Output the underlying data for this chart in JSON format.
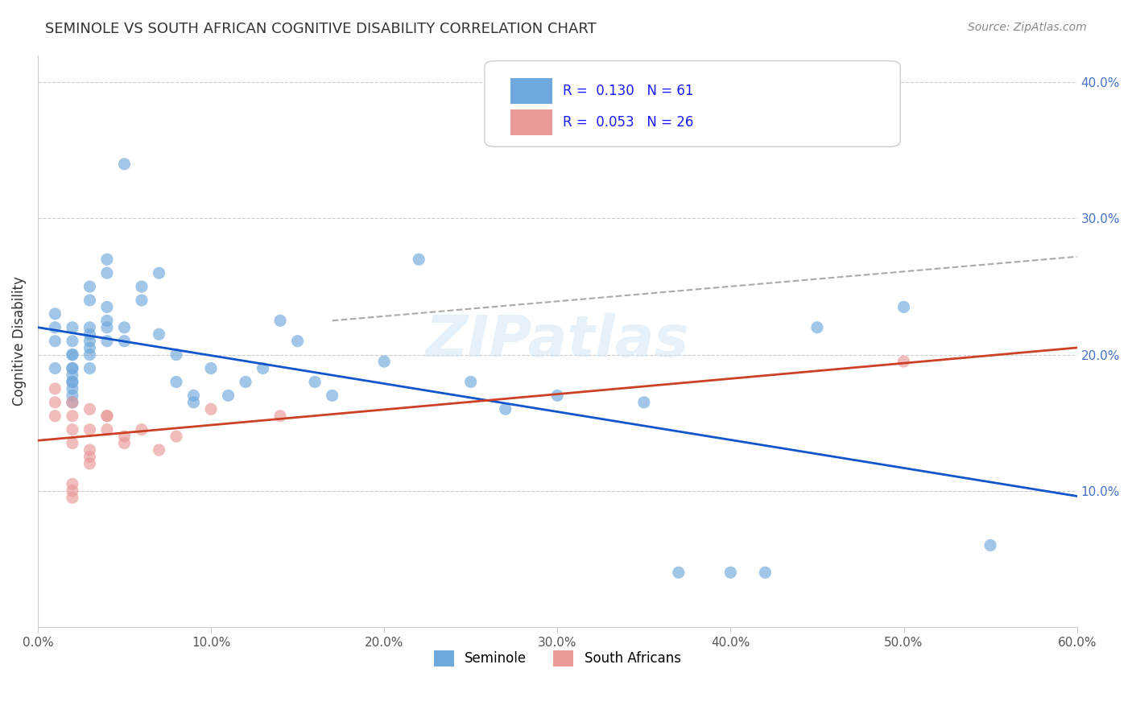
{
  "title": "SEMINOLE VS SOUTH AFRICAN COGNITIVE DISABILITY CORRELATION CHART",
  "source": "Source: ZipAtlas.com",
  "xlabel": "",
  "ylabel": "Cognitive Disability",
  "xlim": [
    0.0,
    0.6
  ],
  "ylim": [
    0.0,
    0.42
  ],
  "xticks": [
    0.0,
    0.1,
    0.2,
    0.3,
    0.4,
    0.5,
    0.6
  ],
  "xticklabels": [
    "0.0%",
    "10.0%",
    "20.0%",
    "30.0%",
    "40.0%",
    "50.0%",
    "60.0%"
  ],
  "yticks_right": [
    0.1,
    0.2,
    0.3,
    0.4
  ],
  "ytick_right_labels": [
    "10.0%",
    "20.0%",
    "30.0%",
    "40.0%"
  ],
  "seminole_R": 0.13,
  "seminole_N": 61,
  "southafrican_R": 0.053,
  "southafrican_N": 26,
  "seminole_color": "#6fa8dc",
  "southafrican_color": "#ea9999",
  "seminole_line_color": "#1155cc",
  "southafrican_line_color": "#cc4125",
  "dashed_line_color": "#aaaaaa",
  "watermark": "ZIPatlas",
  "background_color": "#ffffff",
  "grid_color": "#cccccc",
  "seminole_x": [
    0.01,
    0.01,
    0.01,
    0.01,
    0.02,
    0.02,
    0.02,
    0.02,
    0.02,
    0.02,
    0.02,
    0.02,
    0.02,
    0.02,
    0.02,
    0.02,
    0.03,
    0.03,
    0.03,
    0.03,
    0.03,
    0.03,
    0.03,
    0.03,
    0.04,
    0.04,
    0.04,
    0.04,
    0.04,
    0.04,
    0.05,
    0.05,
    0.05,
    0.06,
    0.06,
    0.07,
    0.07,
    0.08,
    0.08,
    0.09,
    0.09,
    0.1,
    0.11,
    0.12,
    0.13,
    0.14,
    0.15,
    0.16,
    0.17,
    0.2,
    0.22,
    0.25,
    0.27,
    0.3,
    0.35,
    0.37,
    0.4,
    0.42,
    0.45,
    0.5,
    0.55
  ],
  "seminole_y": [
    0.19,
    0.21,
    0.22,
    0.23,
    0.18,
    0.19,
    0.2,
    0.21,
    0.22,
    0.18,
    0.19,
    0.2,
    0.175,
    0.185,
    0.17,
    0.165,
    0.24,
    0.25,
    0.22,
    0.21,
    0.2,
    0.19,
    0.215,
    0.205,
    0.26,
    0.27,
    0.225,
    0.235,
    0.22,
    0.21,
    0.21,
    0.22,
    0.34,
    0.24,
    0.25,
    0.215,
    0.26,
    0.2,
    0.18,
    0.165,
    0.17,
    0.19,
    0.17,
    0.18,
    0.19,
    0.225,
    0.21,
    0.18,
    0.17,
    0.195,
    0.27,
    0.18,
    0.16,
    0.17,
    0.165,
    0.04,
    0.04,
    0.04,
    0.22,
    0.235,
    0.06
  ],
  "southafrican_x": [
    0.01,
    0.01,
    0.01,
    0.02,
    0.02,
    0.02,
    0.02,
    0.02,
    0.02,
    0.02,
    0.03,
    0.03,
    0.03,
    0.03,
    0.03,
    0.04,
    0.04,
    0.04,
    0.05,
    0.05,
    0.06,
    0.07,
    0.08,
    0.1,
    0.14,
    0.5
  ],
  "southafrican_y": [
    0.155,
    0.165,
    0.175,
    0.165,
    0.155,
    0.145,
    0.135,
    0.105,
    0.1,
    0.095,
    0.16,
    0.145,
    0.13,
    0.125,
    0.12,
    0.155,
    0.145,
    0.155,
    0.14,
    0.135,
    0.145,
    0.13,
    0.14,
    0.16,
    0.155,
    0.195
  ]
}
